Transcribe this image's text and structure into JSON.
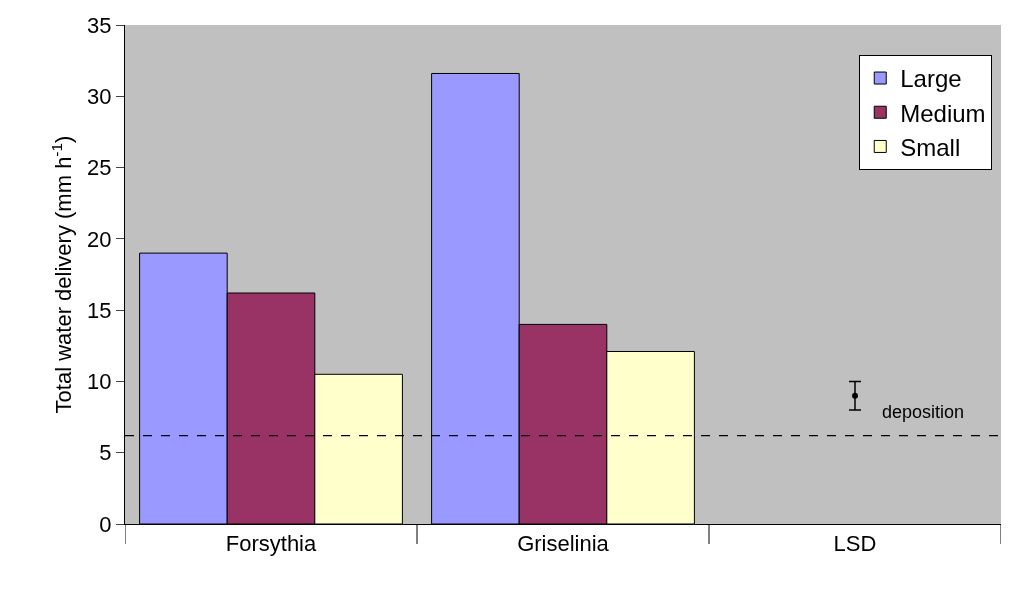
{
  "chart_data": {
    "type": "bar",
    "ylabel": "Total water delivery (mm h$^{-1}$)",
    "categories": [
      "Forsythia",
      "Griselinia",
      "LSD"
    ],
    "series": [
      {
        "name": "Large",
        "color": "#9999ff",
        "values": [
          19.0,
          31.6,
          null
        ]
      },
      {
        "name": "Medium",
        "color": "#993366",
        "values": [
          16.2,
          14.0,
          null
        ]
      },
      {
        "name": "Small",
        "color": "#ffffcc",
        "values": [
          10.5,
          12.1,
          null
        ]
      },
      {
        "type": "scatter",
        "color": "#000000",
        "marker": "none",
        "x": [
          "LSD"
        ],
        "values": [
          9.0
        ],
        "errors": [
          [
            8.0,
            10.0
          ]
        ]
      }
    ],
    "ylim": [
      0,
      35
    ],
    "yticks": [
      0,
      5,
      10,
      15,
      20,
      25,
      30,
      35
    ],
    "grid": false,
    "legend": "top right",
    "ref_lines": [
      {
        "axis": "y",
        "value": 6.2,
        "label": "deposition",
        "color": "#000000",
        "line_style": "dashed"
      }
    ]
  }
}
